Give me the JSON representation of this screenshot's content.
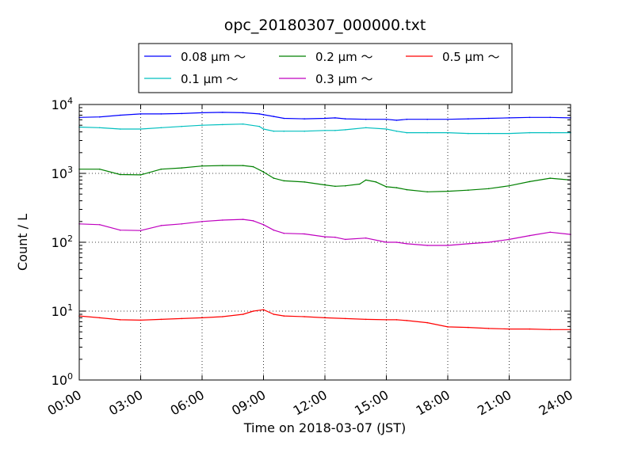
{
  "chart_data": {
    "type": "line",
    "title": "opc_20180307_000000.txt",
    "xlabel": "Time on 2018-03-07 (JST)",
    "ylabel": "Count / L",
    "y_scale": "log",
    "xlim": [
      0,
      24
    ],
    "ylim": [
      1,
      10000
    ],
    "grid": true,
    "grid_style": "dotted",
    "legend_placement": "top-center, above plot",
    "x_ticks": [
      {
        "value": 0,
        "label": "00:00"
      },
      {
        "value": 3,
        "label": "03:00"
      },
      {
        "value": 6,
        "label": "06:00"
      },
      {
        "value": 9,
        "label": "09:00"
      },
      {
        "value": 12,
        "label": "12:00"
      },
      {
        "value": 15,
        "label": "15:00"
      },
      {
        "value": 18,
        "label": "18:00"
      },
      {
        "value": 21,
        "label": "21:00"
      },
      {
        "value": 24,
        "label": "24:00"
      }
    ],
    "y_ticks": [
      {
        "value": 1,
        "base": "10",
        "exp": "0"
      },
      {
        "value": 10,
        "base": "10",
        "exp": "1"
      },
      {
        "value": 100,
        "base": "10",
        "exp": "2"
      },
      {
        "value": 1000,
        "base": "10",
        "exp": "3"
      },
      {
        "value": 10000,
        "base": "10",
        "exp": "4"
      }
    ],
    "series": [
      {
        "name": "0.08 μm ～",
        "color": "#0000ff",
        "x": [
          0,
          1,
          2,
          3,
          4,
          5,
          6,
          7,
          8,
          8.8,
          9,
          9.5,
          10,
          11,
          12,
          12.5,
          13,
          14,
          15,
          15.5,
          16,
          17,
          18,
          19,
          20,
          21,
          22,
          23,
          24
        ],
        "y": [
          6500,
          6600,
          7000,
          7300,
          7300,
          7400,
          7600,
          7700,
          7600,
          7300,
          7100,
          6700,
          6300,
          6200,
          6300,
          6400,
          6200,
          6100,
          6100,
          5900,
          6100,
          6100,
          6100,
          6200,
          6300,
          6400,
          6500,
          6500,
          6400
        ]
      },
      {
        "name": "0.1 μm ～",
        "color": "#00bfbf",
        "x": [
          0,
          1,
          2,
          3,
          4,
          5,
          6,
          7,
          8,
          8.8,
          9,
          9.5,
          10,
          11,
          12,
          12.5,
          13,
          14,
          15,
          15.5,
          16,
          17,
          18,
          19,
          20,
          21,
          22,
          23,
          24
        ],
        "y": [
          4700,
          4600,
          4400,
          4400,
          4600,
          4800,
          5000,
          5100,
          5200,
          4800,
          4400,
          4100,
          4100,
          4100,
          4200,
          4200,
          4300,
          4600,
          4400,
          4100,
          3900,
          3900,
          3900,
          3800,
          3800,
          3800,
          3900,
          3900,
          3900
        ]
      },
      {
        "name": "0.2 μm ～",
        "color": "#008000",
        "x": [
          0,
          1,
          2,
          3,
          4,
          5,
          6,
          7,
          8,
          8.5,
          9,
          9.5,
          10,
          11,
          12,
          12.5,
          13,
          13.7,
          14,
          14.5,
          15,
          15.5,
          16,
          17,
          18,
          19,
          20,
          21,
          22,
          23,
          24
        ],
        "y": [
          1150,
          1150,
          960,
          950,
          1150,
          1200,
          1280,
          1300,
          1300,
          1250,
          1050,
          850,
          780,
          750,
          680,
          650,
          660,
          700,
          800,
          750,
          640,
          620,
          580,
          540,
          550,
          570,
          600,
          660,
          760,
          850,
          800
        ]
      },
      {
        "name": "0.3 μm ～",
        "color": "#bf00bf",
        "x": [
          0,
          1,
          2,
          3,
          4,
          5,
          6,
          7,
          8,
          8.5,
          9,
          9.5,
          10,
          11,
          12,
          12.5,
          13,
          14,
          15,
          15.5,
          16,
          17,
          18,
          19,
          20,
          21,
          22,
          23,
          24
        ],
        "y": [
          185,
          180,
          150,
          148,
          175,
          185,
          200,
          210,
          215,
          205,
          180,
          150,
          135,
          132,
          120,
          118,
          110,
          115,
          100,
          100,
          95,
          90,
          90,
          95,
          100,
          110,
          125,
          140,
          130
        ]
      },
      {
        "name": "0.5 μm ～",
        "color": "#ff0000",
        "x": [
          0,
          1,
          2,
          3,
          4,
          5,
          6,
          7,
          8,
          8.5,
          9,
          9.5,
          10,
          11,
          12,
          13,
          14,
          15,
          15.5,
          16,
          17,
          18,
          19,
          20,
          21,
          22,
          23,
          24
        ],
        "y": [
          8.5,
          8,
          7.5,
          7.4,
          7.6,
          7.8,
          8,
          8.3,
          9,
          10,
          10.5,
          9,
          8.5,
          8.3,
          8,
          7.8,
          7.6,
          7.5,
          7.5,
          7.3,
          6.8,
          5.9,
          5.8,
          5.6,
          5.5,
          5.5,
          5.4,
          5.4
        ]
      }
    ]
  }
}
